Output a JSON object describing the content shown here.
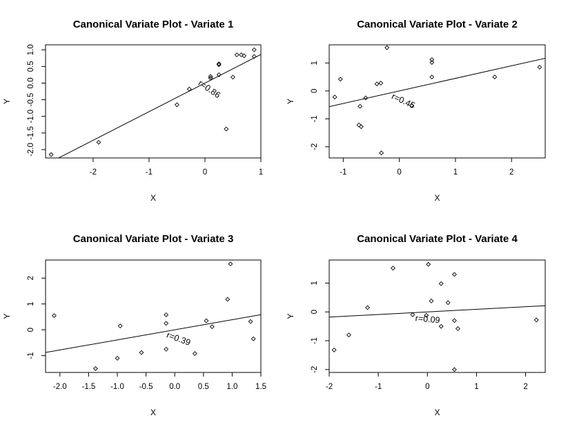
{
  "chart_data": [
    {
      "type": "scatter",
      "title": "Canonical Variate Plot - Variate 1",
      "xlabel": "X",
      "ylabel": "Y",
      "xlim": [
        -2.85,
        1.0
      ],
      "ylim": [
        -2.25,
        1.15
      ],
      "xticks": [
        -2,
        -1,
        0,
        1
      ],
      "yticks": [
        -2.0,
        -1.0,
        0.0,
        1.0
      ],
      "ytick_labels": [
        "-2.0",
        "-1.5",
        "-1.0",
        "-0.5",
        "0.0",
        "0.5",
        "1.0"
      ],
      "ytick_values": [
        -2.0,
        -1.5,
        -1.0,
        -0.5,
        0.0,
        0.5,
        1.0
      ],
      "grid": false,
      "fit_line": {
        "slope": 0.86,
        "intercept": 0.0
      },
      "annotation": {
        "text": "r=0.86",
        "x": 0.05,
        "y": -0.25,
        "rotate": 35
      },
      "points": [
        {
          "x": -2.75,
          "y": -2.15
        },
        {
          "x": -1.9,
          "y": -1.78
        },
        {
          "x": -0.5,
          "y": -0.65
        },
        {
          "x": -0.28,
          "y": -0.18
        },
        {
          "x": 0.1,
          "y": 0.15
        },
        {
          "x": 0.1,
          "y": 0.2
        },
        {
          "x": 0.25,
          "y": 0.25
        },
        {
          "x": 0.25,
          "y": 0.55
        },
        {
          "x": 0.25,
          "y": 0.58
        },
        {
          "x": 0.38,
          "y": -1.38
        },
        {
          "x": 0.5,
          "y": 0.18
        },
        {
          "x": 0.57,
          "y": 0.85
        },
        {
          "x": 0.65,
          "y": 0.85
        },
        {
          "x": 0.7,
          "y": 0.82
        },
        {
          "x": 0.88,
          "y": 1.0
        },
        {
          "x": 0.88,
          "y": 0.8
        }
      ]
    },
    {
      "type": "scatter",
      "title": "Canonical Variate Plot - Variate 2",
      "xlabel": "X",
      "ylabel": "Y",
      "xlim": [
        -1.25,
        2.6
      ],
      "ylim": [
        -2.4,
        1.65
      ],
      "xticks": [
        -1,
        0,
        1,
        2
      ],
      "ytick_labels": [
        "-2",
        "-1",
        "0",
        "1"
      ],
      "ytick_values": [
        -2,
        -1,
        0,
        1
      ],
      "grid": false,
      "fit_line": {
        "slope": 0.45,
        "intercept": 0.0
      },
      "annotation": {
        "text": "r=0.45",
        "x": 0.05,
        "y": -0.45,
        "rotate": 25
      },
      "points": [
        {
          "x": -1.15,
          "y": -0.22
        },
        {
          "x": -1.05,
          "y": 0.42
        },
        {
          "x": -0.72,
          "y": -1.22
        },
        {
          "x": -0.68,
          "y": -1.28
        },
        {
          "x": -0.7,
          "y": -0.55
        },
        {
          "x": -0.6,
          "y": -0.25
        },
        {
          "x": -0.4,
          "y": 0.25
        },
        {
          "x": -0.33,
          "y": 0.28
        },
        {
          "x": -0.32,
          "y": -2.22
        },
        {
          "x": -0.22,
          "y": 1.55
        },
        {
          "x": 0.22,
          "y": -0.52
        },
        {
          "x": 0.58,
          "y": 1.12
        },
        {
          "x": 0.58,
          "y": 1.02
        },
        {
          "x": 0.58,
          "y": 0.5
        },
        {
          "x": 1.7,
          "y": 0.5
        },
        {
          "x": 2.5,
          "y": 0.85
        }
      ]
    },
    {
      "type": "scatter",
      "title": "Canonical Variate Plot - Variate 3",
      "xlabel": "X",
      "ylabel": "Y",
      "xlim": [
        -2.25,
        1.5
      ],
      "ylim": [
        -1.65,
        2.7
      ],
      "xticks": [
        -2.0,
        -1.5,
        -1.0,
        -0.5,
        0.0,
        0.5,
        1.0,
        1.5
      ],
      "xtick_labels": [
        "-2.0",
        "-1.5",
        "-1.0",
        "-0.5",
        "0.0",
        "0.5",
        "1.0",
        "1.5"
      ],
      "ytick_labels": [
        "-1",
        "0",
        "1",
        "2"
      ],
      "ytick_values": [
        -1,
        0,
        1,
        2
      ],
      "grid": false,
      "fit_line": {
        "slope": 0.39,
        "intercept": 0.0
      },
      "annotation": {
        "text": "r=0.39",
        "x": 0.05,
        "y": -0.45,
        "rotate": 20
      },
      "points": [
        {
          "x": -2.1,
          "y": 0.55
        },
        {
          "x": -1.38,
          "y": -1.5
        },
        {
          "x": -1.0,
          "y": -1.1
        },
        {
          "x": -0.95,
          "y": 0.15
        },
        {
          "x": -0.58,
          "y": -0.88
        },
        {
          "x": -0.15,
          "y": -0.75
        },
        {
          "x": -0.15,
          "y": 0.25
        },
        {
          "x": -0.15,
          "y": 0.58
        },
        {
          "x": 0.35,
          "y": -0.92
        },
        {
          "x": 0.55,
          "y": 0.35
        },
        {
          "x": 0.65,
          "y": 0.12
        },
        {
          "x": 0.92,
          "y": 1.18
        },
        {
          "x": 0.97,
          "y": 2.55
        },
        {
          "x": 1.32,
          "y": 0.32
        },
        {
          "x": 1.37,
          "y": -0.35
        }
      ]
    },
    {
      "type": "scatter",
      "title": "Canonical Variate Plot - Variate 4",
      "xlabel": "X",
      "ylabel": "Y",
      "xlim": [
        -2.0,
        2.4
      ],
      "ylim": [
        -2.1,
        1.8
      ],
      "xticks": [
        -2,
        -1,
        0,
        1,
        2
      ],
      "ytick_labels": [
        "-2",
        "-1",
        "0",
        "1"
      ],
      "ytick_values": [
        -2,
        -1,
        0,
        1
      ],
      "grid": false,
      "fit_line": {
        "slope": 0.09,
        "intercept": 0.0
      },
      "annotation": {
        "text": "r=0.09",
        "x": 0.0,
        "y": -0.35,
        "rotate": 5
      },
      "points": [
        {
          "x": -1.9,
          "y": -1.32
        },
        {
          "x": -1.6,
          "y": -0.8
        },
        {
          "x": -1.22,
          "y": 0.15
        },
        {
          "x": -0.7,
          "y": 1.52
        },
        {
          "x": -0.3,
          "y": -0.1
        },
        {
          "x": -0.02,
          "y": -0.12
        },
        {
          "x": 0.02,
          "y": 1.65
        },
        {
          "x": 0.08,
          "y": 0.38
        },
        {
          "x": 0.28,
          "y": 0.98
        },
        {
          "x": 0.28,
          "y": -0.5
        },
        {
          "x": 0.42,
          "y": 0.32
        },
        {
          "x": 0.55,
          "y": 1.3
        },
        {
          "x": 0.55,
          "y": -0.3
        },
        {
          "x": 0.55,
          "y": -2.0
        },
        {
          "x": 0.62,
          "y": -0.58
        },
        {
          "x": 2.22,
          "y": -0.28
        }
      ]
    }
  ]
}
